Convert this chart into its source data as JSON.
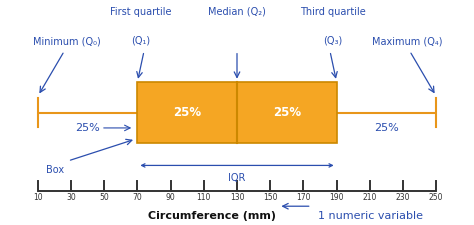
{
  "bg_color": "#ffffff",
  "box_color": "#F5A623",
  "box_edge_color": "#CC8800",
  "line_color": "#E8961A",
  "annotation_color": "#2B4EAE",
  "arrow_color": "#2B4EAE",
  "ruler_color": "#333333",
  "min_val": 10,
  "q1_val": 70,
  "median_val": 130,
  "q3_val": 190,
  "max_val": 250,
  "tick_values": [
    10,
    30,
    50,
    70,
    90,
    110,
    130,
    150,
    170,
    190,
    210,
    230,
    250
  ],
  "xlabel": "Circumference (mm)",
  "xlabel_note": "1 numeric variable",
  "label_minimum": "Minimum (Q₀)",
  "label_q1_line1": "First quartile",
  "label_q1_line2": "(Q₁)",
  "label_median": "Median (Q₂)",
  "label_q3_line1": "Third quartile",
  "label_q3_line2": "(Q₃)",
  "label_maximum": "Maximum (Q₄)",
  "label_iqr": "IQR",
  "label_box": "Box",
  "pct_25": "25%",
  "font_size_annot": 7,
  "font_size_pct_box": 8.5,
  "font_size_pct_whisker": 8,
  "font_size_xlabel": 8,
  "font_size_note": 8,
  "font_size_ruler": 5.5,
  "font_size_box_label": 7,
  "font_size_iqr": 7
}
